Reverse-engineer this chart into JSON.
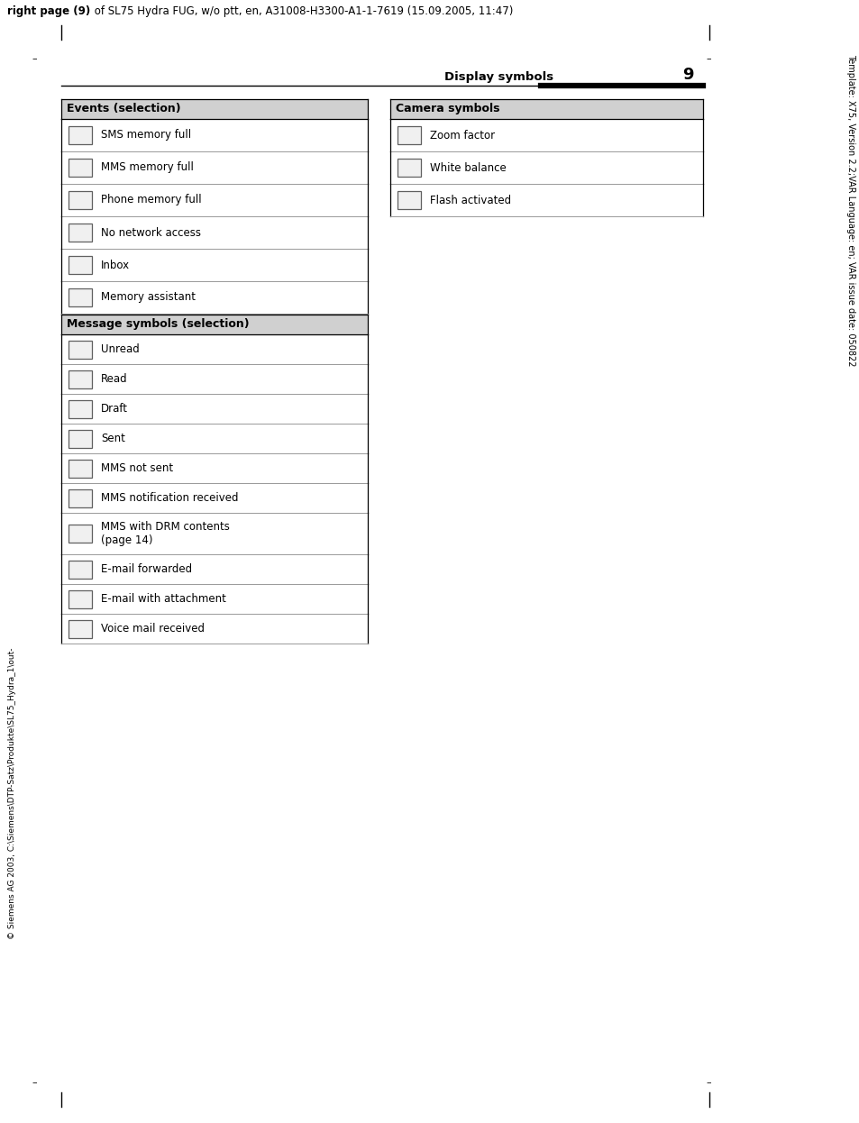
{
  "header_text_bold": "right page (9)",
  "header_text_rest": " of SL75 Hydra FUG, w/o ptt, en, A31008-H3300-A1-1-7619 (15.09.2005, 11:47)",
  "page_title": "Display symbols",
  "page_number": "9",
  "right_sidebar": "Template: X75, Version 2.2;VAR Language: en; VAR issue date: 050822",
  "left_sidebar": "© Siemens AG 2003, C:\\Siemens\\DTP-Satz\\Produkte\\SL75_Hydra_1\\out-",
  "section1_title": "Events (selection)",
  "section1_rows": [
    "SMS memory full",
    "MMS memory full",
    "Phone memory full",
    "No network access",
    "Inbox",
    "Memory assistant"
  ],
  "section2_title": "Message symbols (selection)",
  "section2_rows": [
    "Unread",
    "Read",
    "Draft",
    "Sent",
    "MMS not sent",
    "MMS notification received",
    "MMS with DRM contents\n(page 14)",
    "E-mail forwarded",
    "E-mail with attachment",
    "Voice mail received"
  ],
  "section3_title": "Camera symbols",
  "section3_rows": [
    "Zoom factor",
    "White balance",
    "Flash activated"
  ],
  "bg_color": "#ffffff",
  "section_header_bg": "#d0d0d0",
  "text_color": "#000000",
  "line_color": "#999999",
  "header_fontsize": 8.5,
  "page_title_fontsize": 9.5,
  "page_num_fontsize": 13,
  "body_fontsize": 8.5,
  "section_header_fontsize": 9
}
